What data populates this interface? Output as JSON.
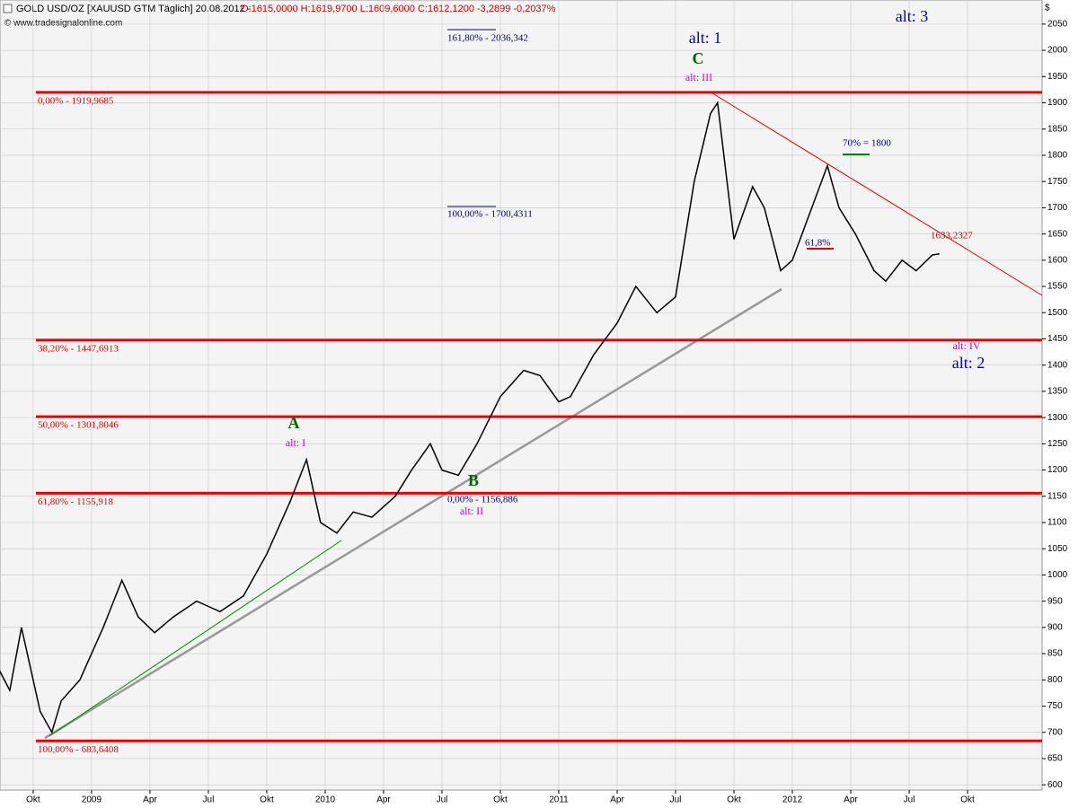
{
  "header": {
    "title": "GOLD USD/OZ [XAUUSD GTM  Täglich] 20.08.2012 -",
    "ohlc": "O:1615,0000 H:1619,9700 L:1609,6000 C:1612,1200 -3,2899 -0,2037%",
    "source": "© www.tradesignalonline.com",
    "currency": "$"
  },
  "chart_data": {
    "type": "line",
    "x": [
      2008.58,
      2008.65,
      2008.7,
      2008.78,
      2008.83,
      2008.87,
      2008.95,
      2009.05,
      2009.13,
      2009.2,
      2009.27,
      2009.35,
      2009.45,
      2009.55,
      2009.65,
      2009.75,
      2009.85,
      2009.92,
      2009.98,
      2010.05,
      2010.12,
      2010.2,
      2010.3,
      2010.37,
      2010.45,
      2010.5,
      2010.57,
      2010.65,
      2010.75,
      2010.85,
      2010.92,
      2011.0,
      2011.05,
      2011.15,
      2011.25,
      2011.33,
      2011.42,
      2011.5,
      2011.58,
      2011.65,
      2011.68,
      2011.75,
      2011.83,
      2011.88,
      2011.95,
      2012.0,
      2012.1,
      2012.15,
      2012.2,
      2012.27,
      2012.35,
      2012.4,
      2012.47,
      2012.53,
      2012.6,
      2012.63
    ],
    "series": [
      {
        "name": "GOLD USD/OZ",
        "color": "#000000",
        "values": [
          840,
          780,
          900,
          740,
          700,
          760,
          800,
          900,
          990,
          920,
          890,
          920,
          950,
          930,
          960,
          1040,
          1140,
          1220,
          1100,
          1080,
          1120,
          1110,
          1150,
          1200,
          1250,
          1200,
          1190,
          1250,
          1340,
          1390,
          1380,
          1330,
          1340,
          1420,
          1480,
          1550,
          1500,
          1530,
          1750,
          1880,
          1900,
          1640,
          1740,
          1700,
          1580,
          1600,
          1720,
          1780,
          1700,
          1650,
          1580,
          1560,
          1600,
          1580,
          1610,
          1612.12
        ]
      }
    ],
    "xlim": [
      2008.608,
      2013.069
    ],
    "xticks": [
      {
        "value": 2008.75,
        "label": "Okt"
      },
      2009,
      {
        "value": 2009.25,
        "label": "Apr"
      },
      {
        "value": 2009.5,
        "label": "Jul"
      },
      {
        "value": 2009.75,
        "label": "Okt"
      },
      2010,
      {
        "value": 2010.25,
        "label": "Apr"
      },
      {
        "value": 2010.5,
        "label": "Jul"
      },
      {
        "value": 2010.75,
        "label": "Okt"
      },
      2011,
      {
        "value": 2011.25,
        "label": "Apr"
      },
      {
        "value": 2011.5,
        "label": "Jul"
      },
      {
        "value": 2011.75,
        "label": "Okt"
      },
      2012,
      {
        "value": 2012.25,
        "label": "Apr"
      },
      {
        "value": 2012.5,
        "label": "Jul"
      },
      {
        "value": 2012.75,
        "label": "Okt"
      }
    ],
    "ylim": [
      590,
      2096
    ],
    "yticks": [
      600,
      650,
      700,
      750,
      800,
      850,
      900,
      950,
      1000,
      1050,
      1100,
      1150,
      1200,
      1250,
      1300,
      1350,
      1400,
      1450,
      1500,
      1550,
      1600,
      1650,
      1700,
      1750,
      1800,
      1850,
      1900,
      1950,
      2000,
      2050
    ],
    "grid": true,
    "levels": [
      {
        "label": "0,00% - 1919,9685",
        "value": 1919.9685
      },
      {
        "label": "38,20% - 1447,6913",
        "value": 1447.6913
      },
      {
        "label": "50,00% - 1301,8046",
        "value": 1301.8046
      },
      {
        "label": "61,80% - 1155,918",
        "value": 1155.918
      },
      {
        "label": "100,00% - 683,6408",
        "value": 683.6408
      }
    ],
    "level_color": "#ee0000",
    "annotations": [
      {
        "text": "alt: 3",
        "color": "#0000cc"
      },
      {
        "text": "alt: 1",
        "color": "#0000cc"
      },
      {
        "text": "C",
        "color": "#006600"
      },
      {
        "text": "alt: III",
        "color": "#cc00cc"
      },
      {
        "text": "A",
        "color": "#006600"
      },
      {
        "text": "alt: I",
        "color": "#cc00cc"
      },
      {
        "text": "B",
        "color": "#006600"
      },
      {
        "text": "alt: II",
        "color": "#cc00cc"
      },
      {
        "text": "alt: IV",
        "color": "#cc00cc"
      },
      {
        "text": "alt: 2",
        "color": "#0000cc"
      },
      {
        "text": "161,80% - 2036,342",
        "color": "#000080"
      },
      {
        "text": "100,00% - 1700,4311",
        "color": "#000080"
      },
      {
        "text": "0,00% - 1156,886",
        "color": "#000080"
      },
      {
        "text": "70% = 1800",
        "color": "#000080"
      },
      {
        "text": "61,8%",
        "color": "#000080"
      },
      {
        "text": "1633,2327",
        "color": "#cc0000"
      }
    ]
  }
}
